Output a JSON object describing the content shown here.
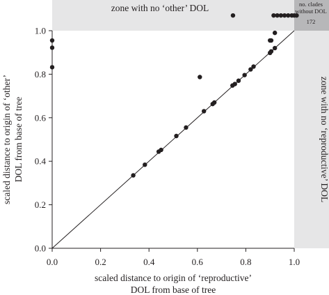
{
  "chart_data": {
    "type": "scatter",
    "xlabel_line1": "scaled distance to origin of ‘reproductive’",
    "xlabel_line2": "DOL from base of tree",
    "ylabel_line1": "scaled distance to origin of ‘other’",
    "ylabel_line2": "DOL from base of tree",
    "xlim": [
      0,
      1
    ],
    "ylim": [
      0,
      1
    ],
    "x_ticks": [
      "0.0",
      "0.2",
      "0.4",
      "0.6",
      "0.8",
      "1.0"
    ],
    "y_ticks": [
      "0.0",
      "0.2",
      "0.4",
      "0.6",
      "0.8",
      "1.0"
    ],
    "annotations": {
      "top_zone": "zone with no ‘other’ DOL",
      "right_zone": "zone with no ‘reproductive’ DOL",
      "corner_line1": "no. clades",
      "corner_line2": "without DOL",
      "corner_count": "172"
    },
    "reference_line": {
      "from": [
        0,
        0
      ],
      "to": [
        1,
        1
      ]
    },
    "colors": {
      "zone": "#e6e6e7",
      "corner": "#b7b7b9",
      "points": "#231f20"
    },
    "points": [
      {
        "x": 0.0,
        "y": 0.955
      },
      {
        "x": 0.0,
        "y": 0.922
      },
      {
        "x": 0.0,
        "y": 0.832
      },
      {
        "x": 0.335,
        "y": 0.335
      },
      {
        "x": 0.383,
        "y": 0.384
      },
      {
        "x": 0.44,
        "y": 0.444
      },
      {
        "x": 0.45,
        "y": 0.452
      },
      {
        "x": 0.513,
        "y": 0.516
      },
      {
        "x": 0.553,
        "y": 0.555
      },
      {
        "x": 0.61,
        "y": 0.787
      },
      {
        "x": 0.627,
        "y": 0.63
      },
      {
        "x": 0.663,
        "y": 0.663
      },
      {
        "x": 0.67,
        "y": 0.67
      },
      {
        "x": 0.745,
        "y": 0.748
      },
      {
        "x": 0.755,
        "y": 0.755
      },
      {
        "x": 0.77,
        "y": 0.77
      },
      {
        "x": 0.795,
        "y": 0.796
      },
      {
        "x": 0.82,
        "y": 0.822
      },
      {
        "x": 0.832,
        "y": 0.835
      },
      {
        "x": 0.9,
        "y": 0.898
      },
      {
        "x": 0.905,
        "y": 0.905
      },
      {
        "x": 0.905,
        "y": 0.955
      },
      {
        "x": 0.92,
        "y": 0.92
      },
      {
        "x": 0.9,
        "y": 0.955
      },
      {
        "x": 0.92,
        "y": 0.99
      }
    ],
    "top_zone_points_x": [
      0.747,
      0.915,
      0.93,
      0.945,
      0.96,
      0.975,
      0.99,
      1.0,
      1.01
    ],
    "top_zone_point_y": 1.07
  }
}
